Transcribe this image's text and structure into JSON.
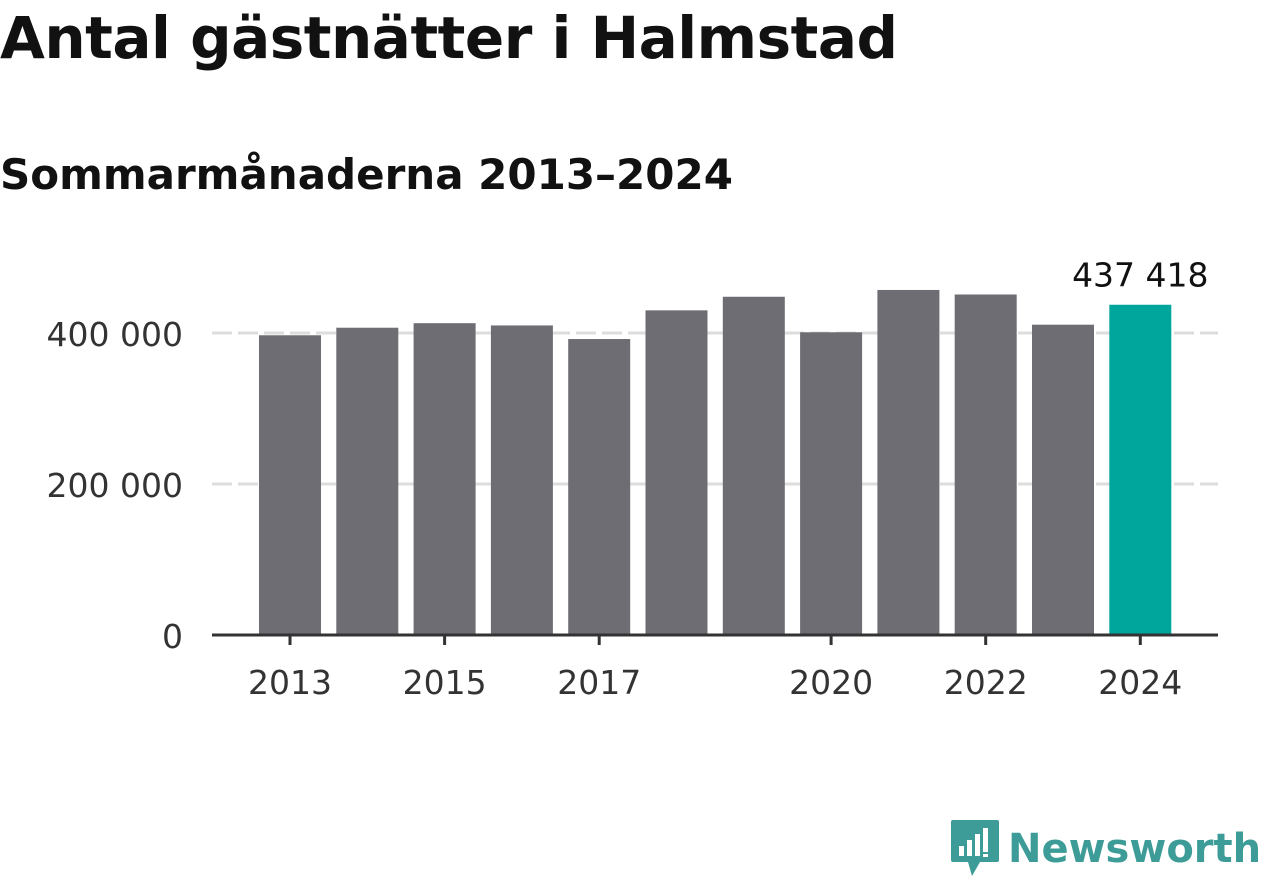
{
  "header": {
    "title": "Antal gästnätter i Halmstad",
    "subtitle": "Sommarmånaderna 2013–2024"
  },
  "colors": {
    "bar": "#6e6d74",
    "highlight": "#00a59b",
    "grid": "#dddddd",
    "axis": "#333333",
    "brand": "#3d9c98"
  },
  "brand": {
    "name": "Newsworthy",
    "icon": "chat-bubble-bar-chart-icon"
  },
  "chart_data": {
    "type": "bar",
    "title": "Antal gästnätter i Halmstad",
    "subtitle": "Sommarmånaderna 2013–2024",
    "xlabel": "",
    "ylabel": "",
    "categories": [
      "2013",
      "2014",
      "2015",
      "2016",
      "2017",
      "2018",
      "2019",
      "2020",
      "2021",
      "2022",
      "2023",
      "2024"
    ],
    "values": [
      397000,
      407000,
      413000,
      410000,
      392000,
      430000,
      448000,
      401000,
      457000,
      451000,
      411000,
      437418
    ],
    "highlight_index": 11,
    "ylim": [
      0,
      480000
    ],
    "y_ticks": [
      0,
      200000,
      400000
    ],
    "y_tick_labels": [
      "0",
      "200 000",
      "400 000"
    ],
    "x_tick_labels": [
      "2013",
      "2015",
      "2017",
      "2020",
      "2022",
      "2024"
    ],
    "annotations": [
      {
        "category": "2024",
        "text": "437 418"
      }
    ],
    "grid": "horizontal, dashed",
    "legend": "none"
  }
}
